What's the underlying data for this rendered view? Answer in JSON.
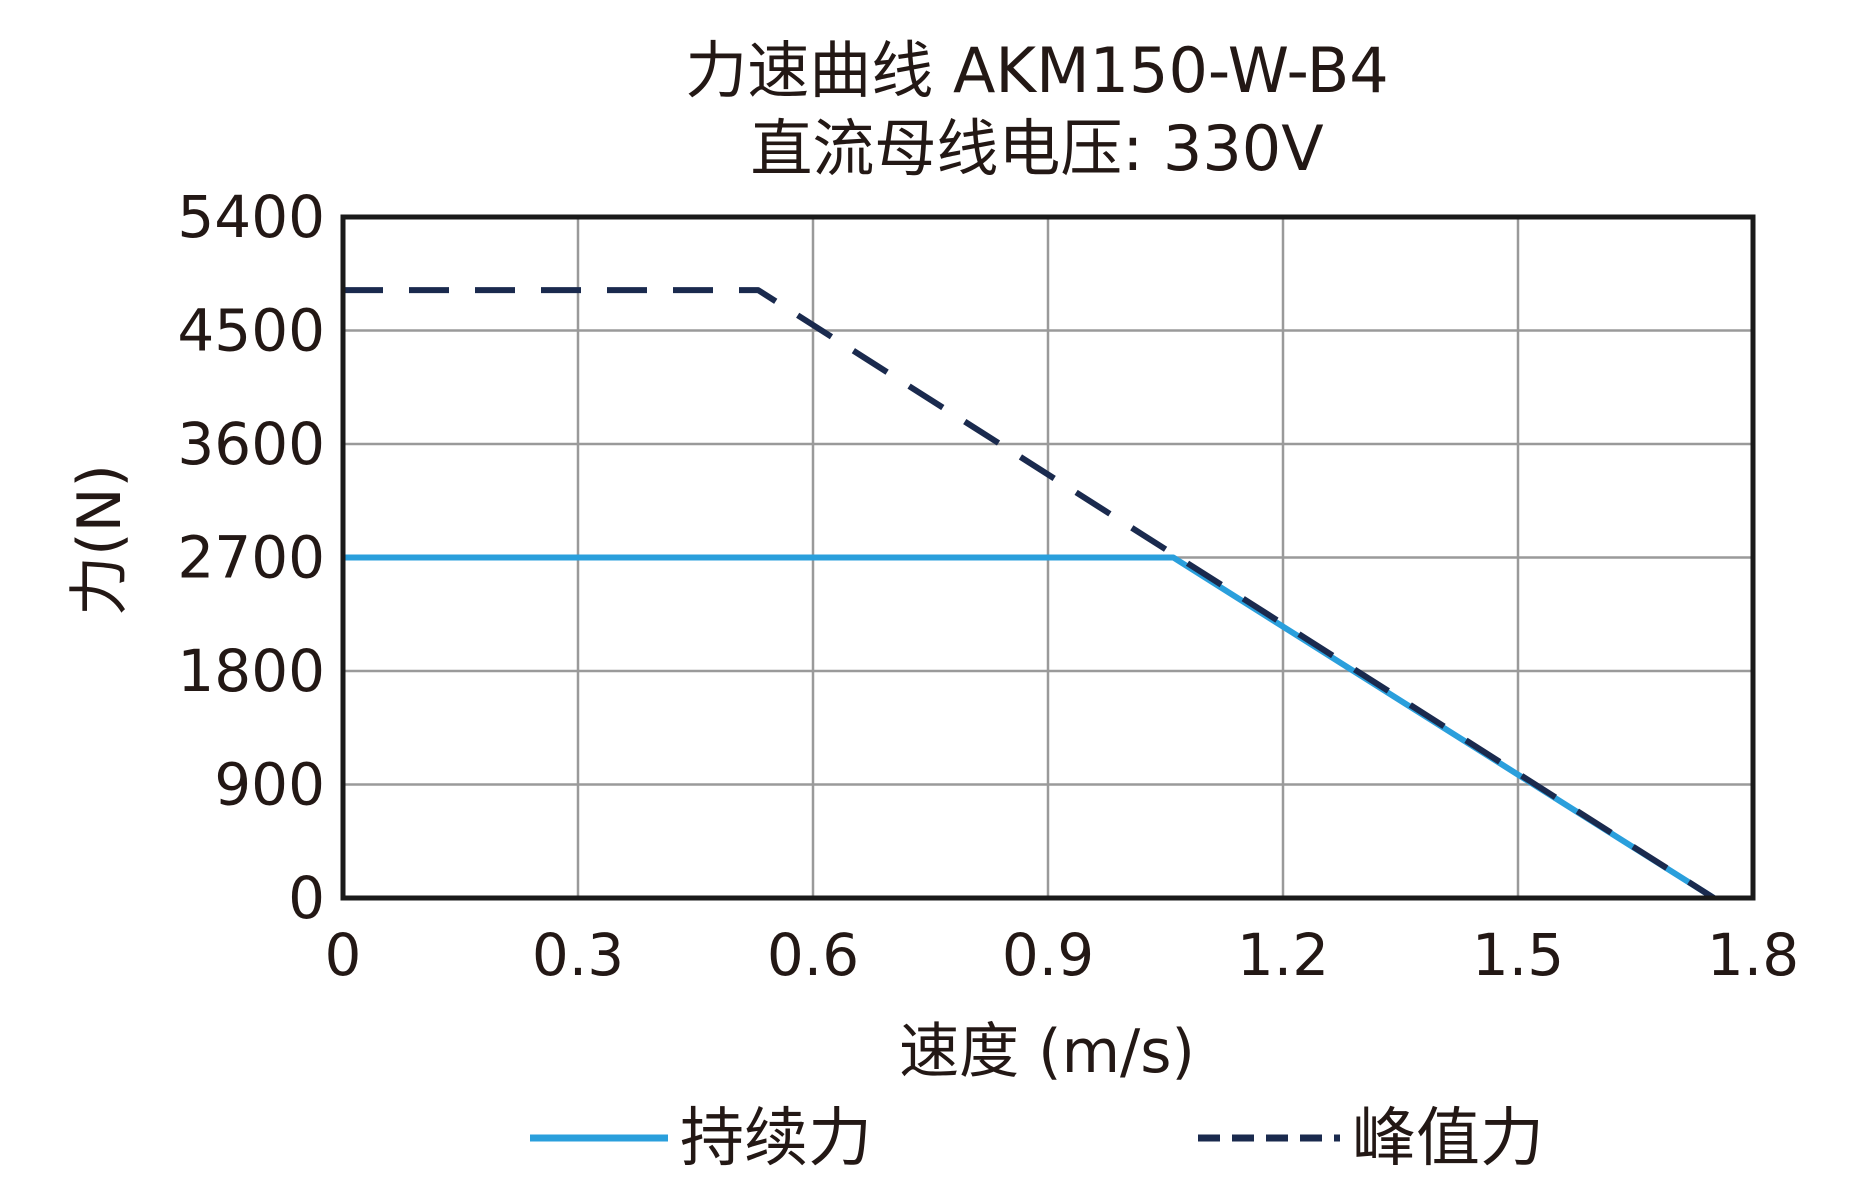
{
  "chart_data": {
    "type": "line",
    "title": "力速曲线 AKM150-W-B4",
    "subtitle": "直流母线电压: 330V",
    "xlabel": "速度 (m/s)",
    "ylabel": "力(N)",
    "xlim": [
      0,
      1.8
    ],
    "ylim": [
      0,
      5400
    ],
    "xticks": [
      "0",
      "0.3",
      "0.6",
      "0.9",
      "1.2",
      "1.5",
      "1.8"
    ],
    "yticks": [
      "0",
      "900",
      "1800",
      "2700",
      "3600",
      "4500",
      "5400"
    ],
    "xtick_values": [
      0,
      0.3,
      0.6,
      0.9,
      1.2,
      1.5,
      1.8
    ],
    "ytick_values": [
      0,
      900,
      1800,
      2700,
      3600,
      4500,
      5400
    ],
    "grid": true,
    "legend_position": "bottom",
    "series": [
      {
        "name": "持续力",
        "style": "solid",
        "color": "#2a9fdc",
        "points": [
          [
            0,
            2700
          ],
          [
            1.06,
            2700
          ],
          [
            1.75,
            0
          ]
        ]
      },
      {
        "name": "峰值力",
        "style": "dashed",
        "color": "#1a2a4e",
        "points": [
          [
            0,
            4820
          ],
          [
            0.53,
            4820
          ],
          [
            1.75,
            0
          ]
        ]
      }
    ]
  }
}
